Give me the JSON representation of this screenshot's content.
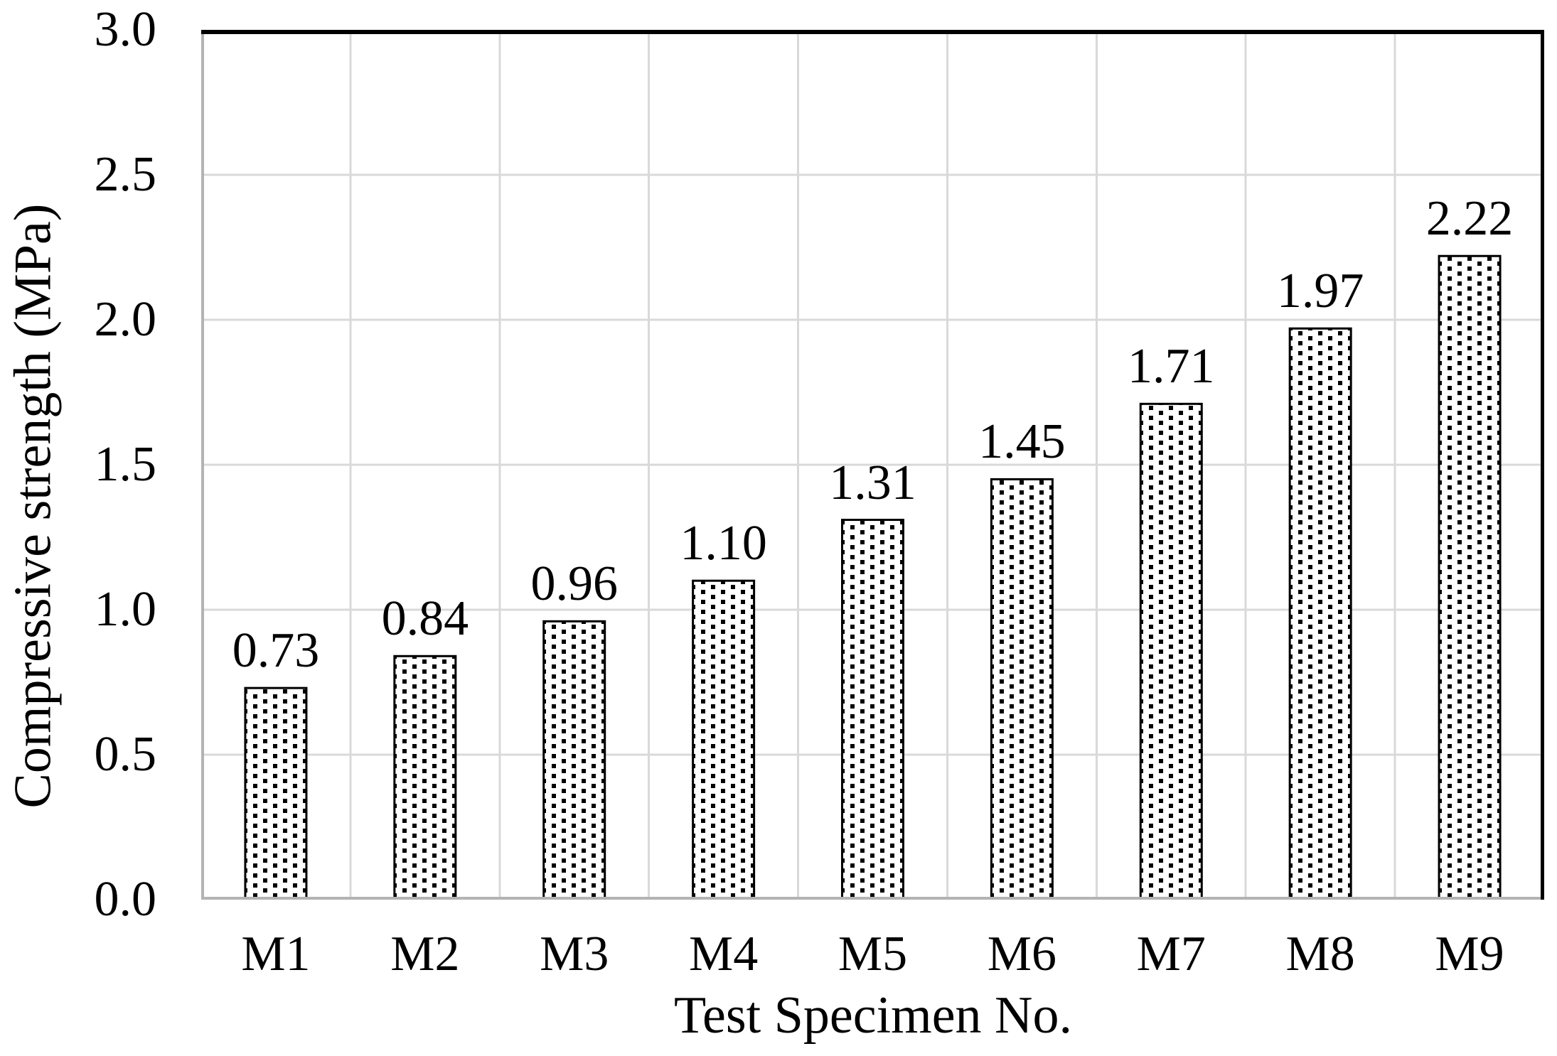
{
  "chart_data": {
    "type": "bar",
    "title": "",
    "categories": [
      "M1",
      "M2",
      "M3",
      "M4",
      "M5",
      "M6",
      "M7",
      "M8",
      "M9"
    ],
    "values": [
      0.73,
      0.84,
      0.96,
      1.1,
      1.31,
      1.45,
      1.71,
      1.97,
      2.22
    ],
    "data_labels": [
      "0.73",
      "0.84",
      "0.96",
      "1.10",
      "1.31",
      "1.45",
      "1.71",
      "1.97",
      "2.22"
    ],
    "xlabel": "Test Specimen No.",
    "ylabel": "Compressive strength (MPa)",
    "ylim": [
      0.0,
      3.0
    ],
    "ytick_step": 0.5,
    "yticks": [
      "0.0",
      "0.5",
      "1.0",
      "1.5",
      "2.0",
      "2.5",
      "3.0"
    ],
    "grid": "both",
    "legend": "none",
    "bar_fill": "staggered-black-square-dot-pattern",
    "colors": {
      "background": "#ffffff",
      "gridline": "#d9d9d9",
      "axis_line": "#b3b3b3",
      "plot_border": "#000000",
      "bar_dot": "#000000",
      "bar_background": "#ffffff",
      "bar_border": "#000000",
      "text": "#000000"
    }
  }
}
